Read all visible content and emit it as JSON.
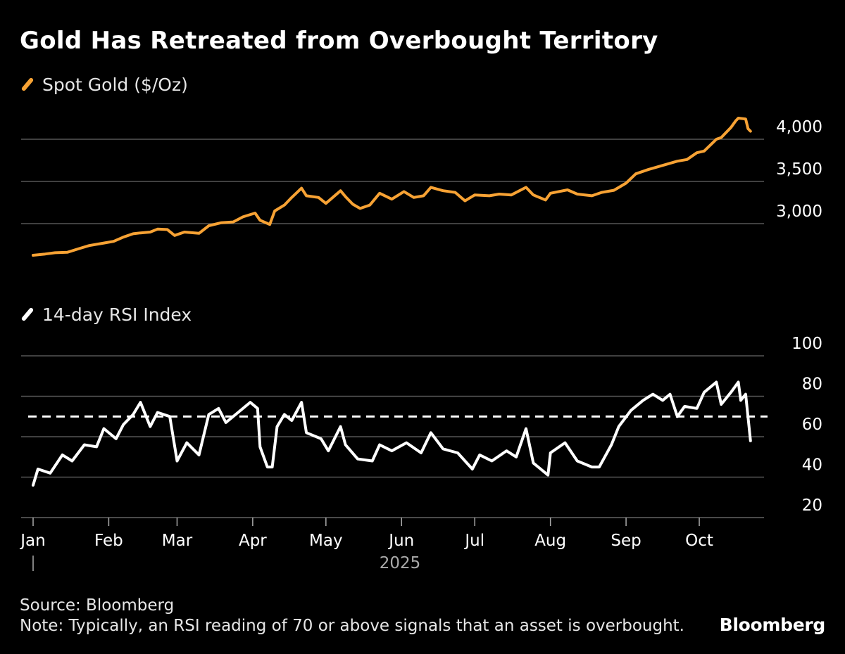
{
  "colors": {
    "background": "#000000",
    "gold": "#f7a234",
    "rsi": "#ffffff",
    "grid": "#555555",
    "axis": "#aaaaaa"
  },
  "footer": {
    "source": "Source: Bloomberg",
    "note": "Note: Typically, an RSI reading of 70 or above signals that an asset is overbought.",
    "brand": "Bloomberg"
  },
  "chart_data": [
    {
      "type": "line",
      "title": "Gold Has Retreated from Overbought Territory",
      "legend": "top-left",
      "series": [
        {
          "name": "Spot Gold ($/Oz)",
          "color": "#f7a234"
        }
      ],
      "ylim": [
        2600,
        4250
      ],
      "yticks": [
        3000,
        3500,
        4000
      ],
      "ytick_labels": [
        "3,000",
        "3,500",
        "4,000"
      ],
      "grid": true,
      "points": [
        [
          "2025-01-01",
          2625
        ],
        [
          "2025-01-06",
          2640
        ],
        [
          "2025-01-10",
          2655
        ],
        [
          "2025-01-15",
          2660
        ],
        [
          "2025-01-20",
          2705
        ],
        [
          "2025-01-24",
          2740
        ],
        [
          "2025-01-30",
          2770
        ],
        [
          "2025-02-03",
          2790
        ],
        [
          "2025-02-07",
          2840
        ],
        [
          "2025-02-11",
          2880
        ],
        [
          "2025-02-14",
          2890
        ],
        [
          "2025-02-18",
          2900
        ],
        [
          "2025-02-21",
          2935
        ],
        [
          "2025-02-25",
          2930
        ],
        [
          "2025-02-28",
          2860
        ],
        [
          "2025-03-04",
          2900
        ],
        [
          "2025-03-10",
          2885
        ],
        [
          "2025-03-14",
          2975
        ],
        [
          "2025-03-19",
          3010
        ],
        [
          "2025-03-24",
          3020
        ],
        [
          "2025-03-28",
          3080
        ],
        [
          "2025-04-02",
          3125
        ],
        [
          "2025-04-04",
          3040
        ],
        [
          "2025-04-08",
          2990
        ],
        [
          "2025-04-10",
          3150
        ],
        [
          "2025-04-14",
          3220
        ],
        [
          "2025-04-17",
          3310
        ],
        [
          "2025-04-21",
          3420
        ],
        [
          "2025-04-23",
          3330
        ],
        [
          "2025-04-28",
          3310
        ],
        [
          "2025-05-01",
          3240
        ],
        [
          "2025-05-05",
          3340
        ],
        [
          "2025-05-07",
          3390
        ],
        [
          "2025-05-09",
          3320
        ],
        [
          "2025-05-12",
          3230
        ],
        [
          "2025-05-15",
          3180
        ],
        [
          "2025-05-19",
          3220
        ],
        [
          "2025-05-23",
          3360
        ],
        [
          "2025-05-28",
          3290
        ],
        [
          "2025-06-02",
          3380
        ],
        [
          "2025-06-06",
          3310
        ],
        [
          "2025-06-10",
          3330
        ],
        [
          "2025-06-13",
          3430
        ],
        [
          "2025-06-18",
          3390
        ],
        [
          "2025-06-23",
          3370
        ],
        [
          "2025-06-27",
          3270
        ],
        [
          "2025-07-01",
          3340
        ],
        [
          "2025-07-07",
          3330
        ],
        [
          "2025-07-11",
          3350
        ],
        [
          "2025-07-16",
          3340
        ],
        [
          "2025-07-22",
          3430
        ],
        [
          "2025-07-25",
          3340
        ],
        [
          "2025-07-30",
          3280
        ],
        [
          "2025-08-01",
          3360
        ],
        [
          "2025-08-08",
          3400
        ],
        [
          "2025-08-12",
          3350
        ],
        [
          "2025-08-18",
          3330
        ],
        [
          "2025-08-22",
          3370
        ],
        [
          "2025-08-27",
          3395
        ],
        [
          "2025-09-01",
          3480
        ],
        [
          "2025-09-05",
          3590
        ],
        [
          "2025-09-10",
          3640
        ],
        [
          "2025-09-16",
          3690
        ],
        [
          "2025-09-22",
          3740
        ],
        [
          "2025-09-26",
          3760
        ],
        [
          "2025-09-30",
          3840
        ],
        [
          "2025-10-03",
          3860
        ],
        [
          "2025-10-08",
          4000
        ],
        [
          "2025-10-10",
          4020
        ],
        [
          "2025-10-14",
          4140
        ],
        [
          "2025-10-16",
          4220
        ],
        [
          "2025-10-17",
          4250
        ],
        [
          "2025-10-20",
          4240
        ],
        [
          "2025-10-21",
          4125
        ],
        [
          "2025-10-22",
          4095
        ]
      ]
    },
    {
      "type": "line",
      "legend": "top-left",
      "series": [
        {
          "name": "14-day RSI Index",
          "color": "#ffffff"
        }
      ],
      "ylim": [
        20,
        100
      ],
      "yticks": [
        20,
        40,
        60,
        80,
        100
      ],
      "ytick_labels": [
        "20",
        "40",
        "60",
        "80",
        "100"
      ],
      "reference_line": {
        "y": 70,
        "style": "dashed"
      },
      "grid": true,
      "points": [
        [
          "2025-01-01",
          36
        ],
        [
          "2025-01-03",
          44
        ],
        [
          "2025-01-08",
          42
        ],
        [
          "2025-01-13",
          51
        ],
        [
          "2025-01-17",
          48
        ],
        [
          "2025-01-22",
          56
        ],
        [
          "2025-01-27",
          55
        ],
        [
          "2025-01-30",
          64
        ],
        [
          "2025-02-04",
          59
        ],
        [
          "2025-02-07",
          66
        ],
        [
          "2025-02-11",
          71
        ],
        [
          "2025-02-14",
          77
        ],
        [
          "2025-02-18",
          65
        ],
        [
          "2025-02-21",
          72
        ],
        [
          "2025-02-26",
          70
        ],
        [
          "2025-03-01",
          48
        ],
        [
          "2025-03-05",
          57
        ],
        [
          "2025-03-10",
          51
        ],
        [
          "2025-03-14",
          71
        ],
        [
          "2025-03-18",
          74
        ],
        [
          "2025-03-21",
          67
        ],
        [
          "2025-03-26",
          72
        ],
        [
          "2025-03-31",
          77
        ],
        [
          "2025-04-03",
          74
        ],
        [
          "2025-04-04",
          55
        ],
        [
          "2025-04-07",
          45
        ],
        [
          "2025-04-09",
          45
        ],
        [
          "2025-04-11",
          65
        ],
        [
          "2025-04-14",
          71
        ],
        [
          "2025-04-17",
          68
        ],
        [
          "2025-04-21",
          77
        ],
        [
          "2025-04-23",
          62
        ],
        [
          "2025-04-29",
          59
        ],
        [
          "2025-05-02",
          53
        ],
        [
          "2025-05-07",
          65
        ],
        [
          "2025-05-09",
          56
        ],
        [
          "2025-05-14",
          49
        ],
        [
          "2025-05-20",
          48
        ],
        [
          "2025-05-23",
          56
        ],
        [
          "2025-05-28",
          53
        ],
        [
          "2025-06-03",
          57
        ],
        [
          "2025-06-09",
          52
        ],
        [
          "2025-06-13",
          62
        ],
        [
          "2025-06-18",
          54
        ],
        [
          "2025-06-24",
          52
        ],
        [
          "2025-06-30",
          44
        ],
        [
          "2025-07-03",
          51
        ],
        [
          "2025-07-08",
          48
        ],
        [
          "2025-07-14",
          53
        ],
        [
          "2025-07-18",
          50
        ],
        [
          "2025-07-22",
          64
        ],
        [
          "2025-07-25",
          47
        ],
        [
          "2025-07-31",
          41
        ],
        [
          "2025-08-01",
          52
        ],
        [
          "2025-08-07",
          57
        ],
        [
          "2025-08-12",
          48
        ],
        [
          "2025-08-18",
          45
        ],
        [
          "2025-08-21",
          45
        ],
        [
          "2025-08-26",
          56
        ],
        [
          "2025-08-29",
          65
        ],
        [
          "2025-09-03",
          73
        ],
        [
          "2025-09-08",
          78
        ],
        [
          "2025-09-12",
          81
        ],
        [
          "2025-09-16",
          78
        ],
        [
          "2025-09-19",
          81
        ],
        [
          "2025-09-22",
          70
        ],
        [
          "2025-09-25",
          75
        ],
        [
          "2025-09-30",
          74
        ],
        [
          "2025-10-03",
          82
        ],
        [
          "2025-10-08",
          87
        ],
        [
          "2025-10-10",
          76
        ],
        [
          "2025-10-14",
          82
        ],
        [
          "2025-10-17",
          87
        ],
        [
          "2025-10-18",
          78
        ],
        [
          "2025-10-20",
          81
        ],
        [
          "2025-10-22",
          58
        ]
      ]
    }
  ],
  "x_axis": {
    "months": [
      "Jan",
      "Feb",
      "Mar",
      "Apr",
      "May",
      "Jun",
      "Jul",
      "Aug",
      "Sep",
      "Oct"
    ],
    "month_starts": [
      "2025-01-01",
      "2025-02-01",
      "2025-03-01",
      "2025-04-01",
      "2025-05-01",
      "2025-06-01",
      "2025-07-01",
      "2025-08-01",
      "2025-09-01",
      "2025-10-01"
    ],
    "year_label": "2025",
    "xlim": [
      "2025-01-01",
      "2025-10-31"
    ]
  }
}
